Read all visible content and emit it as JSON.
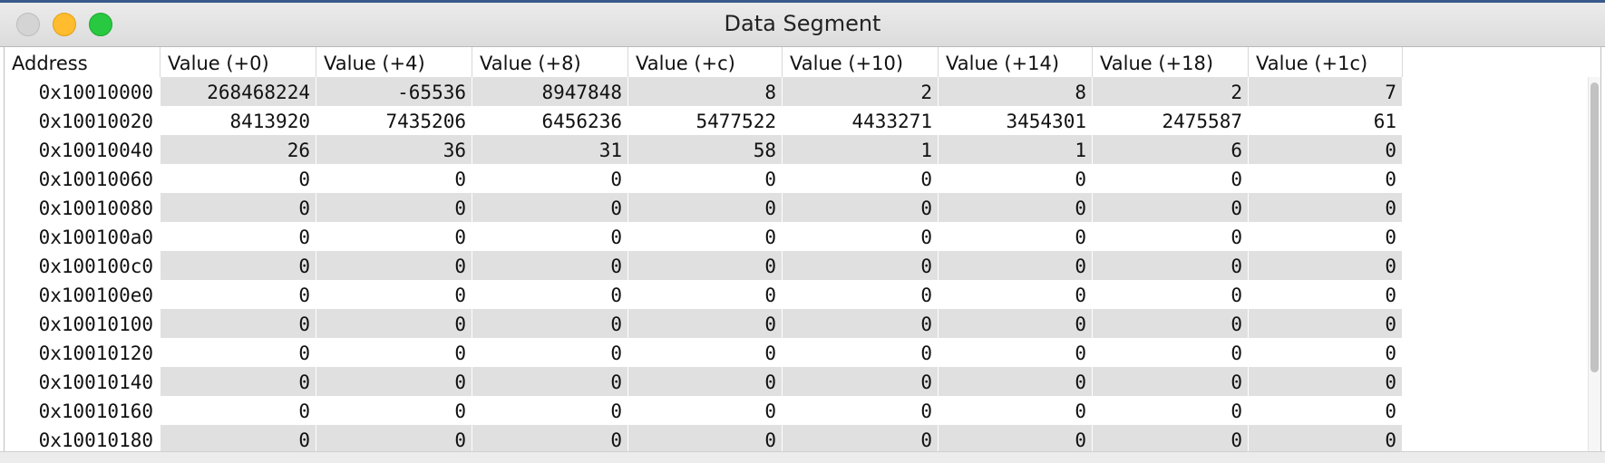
{
  "window": {
    "title": "Data Segment",
    "controls": [
      "close-button",
      "minimize-button",
      "zoom-button"
    ]
  },
  "table": {
    "headers": [
      "Address",
      "Value (+0)",
      "Value (+4)",
      "Value (+8)",
      "Value (+c)",
      "Value (+10)",
      "Value (+14)",
      "Value (+18)",
      "Value (+1c)"
    ],
    "rows": [
      {
        "address": "0x10010000",
        "values": [
          "268468224",
          "-65536",
          "8947848",
          "8",
          "2",
          "8",
          "2",
          "7"
        ]
      },
      {
        "address": "0x10010020",
        "values": [
          "8413920",
          "7435206",
          "6456236",
          "5477522",
          "4433271",
          "3454301",
          "2475587",
          "61"
        ]
      },
      {
        "address": "0x10010040",
        "values": [
          "26",
          "36",
          "31",
          "58",
          "1",
          "1",
          "6",
          "0"
        ]
      },
      {
        "address": "0x10010060",
        "values": [
          "0",
          "0",
          "0",
          "0",
          "0",
          "0",
          "0",
          "0"
        ]
      },
      {
        "address": "0x10010080",
        "values": [
          "0",
          "0",
          "0",
          "0",
          "0",
          "0",
          "0",
          "0"
        ]
      },
      {
        "address": "0x100100a0",
        "values": [
          "0",
          "0",
          "0",
          "0",
          "0",
          "0",
          "0",
          "0"
        ]
      },
      {
        "address": "0x100100c0",
        "values": [
          "0",
          "0",
          "0",
          "0",
          "0",
          "0",
          "0",
          "0"
        ]
      },
      {
        "address": "0x100100e0",
        "values": [
          "0",
          "0",
          "0",
          "0",
          "0",
          "0",
          "0",
          "0"
        ]
      },
      {
        "address": "0x10010100",
        "values": [
          "0",
          "0",
          "0",
          "0",
          "0",
          "0",
          "0",
          "0"
        ]
      },
      {
        "address": "0x10010120",
        "values": [
          "0",
          "0",
          "0",
          "0",
          "0",
          "0",
          "0",
          "0"
        ]
      },
      {
        "address": "0x10010140",
        "values": [
          "0",
          "0",
          "0",
          "0",
          "0",
          "0",
          "0",
          "0"
        ]
      },
      {
        "address": "0x10010160",
        "values": [
          "0",
          "0",
          "0",
          "0",
          "0",
          "0",
          "0",
          "0"
        ]
      },
      {
        "address": "0x10010180",
        "values": [
          "0",
          "0",
          "0",
          "0",
          "0",
          "0",
          "0",
          "0"
        ]
      }
    ]
  },
  "colors": {
    "stripe": "#e0e0e0",
    "close": "#d4d4d4",
    "minimize": "#febc2e",
    "zoom": "#28c840"
  }
}
